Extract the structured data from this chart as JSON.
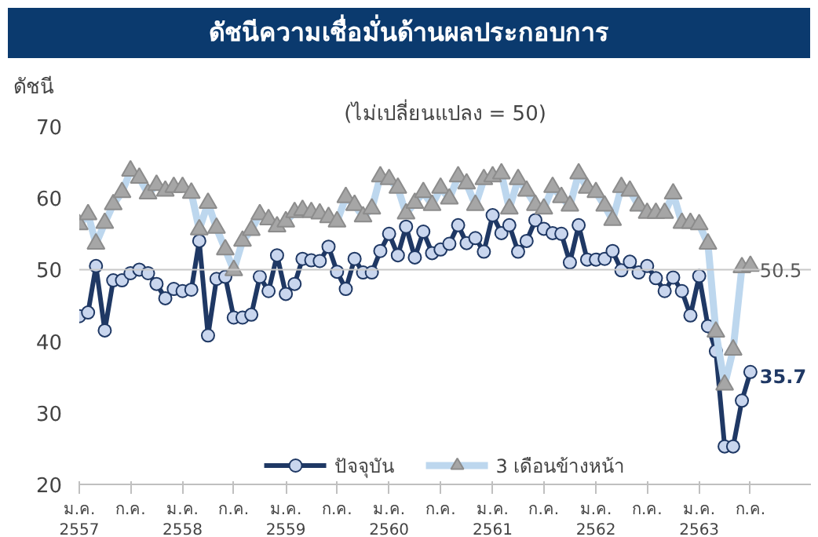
{
  "chart_data": {
    "type": "line",
    "title": "ดัชนีความเชื่อมั่นด้านผลประกอบการ",
    "subtitle": "(ไม่เปลี่ยนแปลง = 50)",
    "ylabel": "ดัชนี",
    "x": [
      "2557-01",
      "2557-02",
      "2557-03",
      "2557-04",
      "2557-05",
      "2557-06",
      "2557-07",
      "2557-08",
      "2557-09",
      "2557-10",
      "2557-11",
      "2557-12",
      "2558-01",
      "2558-02",
      "2558-03",
      "2558-04",
      "2558-05",
      "2558-06",
      "2558-07",
      "2558-08",
      "2558-09",
      "2558-10",
      "2558-11",
      "2558-12",
      "2559-01",
      "2559-02",
      "2559-03",
      "2559-04",
      "2559-05",
      "2559-06",
      "2559-07",
      "2559-08",
      "2559-09",
      "2559-10",
      "2559-11",
      "2559-12",
      "2560-01",
      "2560-02",
      "2560-03",
      "2560-04",
      "2560-05",
      "2560-06",
      "2560-07",
      "2560-08",
      "2560-09",
      "2560-10",
      "2560-11",
      "2560-12",
      "2561-01",
      "2561-02",
      "2561-03",
      "2561-04",
      "2561-05",
      "2561-06",
      "2561-07",
      "2561-08",
      "2561-09",
      "2561-10",
      "2561-11",
      "2561-12",
      "2562-01",
      "2562-02",
      "2562-03",
      "2562-04",
      "2562-05",
      "2562-06",
      "2562-07",
      "2562-08",
      "2562-09",
      "2562-10",
      "2562-11",
      "2562-12",
      "2563-01",
      "2563-02",
      "2563-03",
      "2563-04",
      "2563-05",
      "2563-06",
      "2563-07"
    ],
    "series": [
      {
        "name": "ปัจจุบัน",
        "color": "#1f3864",
        "marker": "circle",
        "values": [
          43.5,
          44,
          50.5,
          41.5,
          48.5,
          48.5,
          49.5,
          50,
          49.5,
          48,
          46,
          47.3,
          47,
          47.2,
          54,
          40.8,
          48.7,
          49,
          43.3,
          43.3,
          43.7,
          49,
          47,
          52,
          46.6,
          48,
          51.5,
          51.3,
          51.2,
          53.2,
          49.7,
          47.3,
          51.5,
          49.6,
          49.6,
          52.6,
          55,
          52,
          56,
          51.7,
          55.3,
          52.3,
          52.8,
          53.6,
          56.2,
          53.7,
          54.4,
          52.5,
          57.6,
          55.1,
          56.2,
          52.5,
          54,
          56.9,
          55.7,
          55.1,
          55,
          51,
          56.2,
          51.4,
          51.4,
          51.5,
          52.6,
          49.9,
          51.1,
          49.6,
          50.5,
          48.8,
          47,
          48.9,
          47,
          43.6,
          49.1,
          42.1,
          38.6,
          25.3,
          25.3,
          31.7,
          35.7
        ],
        "value_labels": [
          null,
          null,
          null,
          null,
          null,
          null,
          null,
          null,
          null,
          null,
          null,
          null,
          null,
          null,
          null,
          null,
          null,
          null,
          null,
          null,
          null,
          null,
          null,
          null,
          null,
          null,
          null,
          null,
          null,
          null,
          null,
          null,
          null,
          null,
          null,
          null,
          null,
          null,
          null,
          null,
          null,
          null,
          null,
          null,
          null,
          null,
          null,
          null,
          null,
          null,
          null,
          null,
          null,
          null,
          null,
          null,
          null,
          null,
          null,
          null,
          null,
          null,
          null,
          null,
          null,
          null,
          null,
          null,
          null,
          null,
          null,
          null,
          null,
          null,
          null,
          null,
          null,
          null,
          "35.7"
        ]
      },
      {
        "name": "3 เดือนข้างหน้า",
        "color": "#bdd7ee",
        "marker": "triangle",
        "values": [
          56.3,
          57.7,
          53.6,
          56.5,
          59.1,
          60.8,
          63.8,
          62.8,
          60.6,
          61.8,
          61,
          61.5,
          61.5,
          60.7,
          55.6,
          59.3,
          55.8,
          52.8,
          49.9,
          54,
          55.5,
          57.7,
          57,
          56,
          56.7,
          58,
          58.3,
          58,
          57.8,
          57.3,
          56.7,
          60.1,
          59,
          57.4,
          58.5,
          63,
          62.6,
          61.4,
          57.8,
          59.3,
          60.8,
          59,
          61.4,
          59.9,
          63,
          62,
          59,
          62.6,
          63,
          63.4,
          58.5,
          62.6,
          61,
          59,
          58.5,
          61.5,
          60.1,
          58.9,
          63.4,
          61.4,
          60.8,
          58.9,
          56.9,
          61.5,
          61,
          58.9,
          57.9,
          57.9,
          57.9,
          60.6,
          56.5,
          56.5,
          56.3,
          53.6,
          41.3,
          33.9,
          38.8,
          50.3,
          50.5
        ],
        "value_labels": [
          null,
          null,
          null,
          null,
          null,
          null,
          null,
          null,
          null,
          null,
          null,
          null,
          null,
          null,
          null,
          null,
          null,
          null,
          null,
          null,
          null,
          null,
          null,
          null,
          null,
          null,
          null,
          null,
          null,
          null,
          null,
          null,
          null,
          null,
          null,
          null,
          null,
          null,
          null,
          null,
          null,
          null,
          null,
          null,
          null,
          null,
          null,
          null,
          null,
          null,
          null,
          null,
          null,
          null,
          null,
          null,
          null,
          null,
          null,
          null,
          null,
          null,
          null,
          null,
          null,
          null,
          null,
          null,
          null,
          null,
          null,
          null,
          null,
          null,
          null,
          null,
          null,
          null,
          "50.5"
        ]
      }
    ],
    "xlim": [
      "2557-01",
      "2564-01-31"
    ],
    "xticks": [
      {
        "value": "2557-01",
        "label": "ม.ค.\n2557"
      },
      {
        "value": "2557-07",
        "label": "ก.ค."
      },
      {
        "value": "2558-01",
        "label": "ม.ค.\n2558"
      },
      {
        "value": "2558-07",
        "label": "ก.ค."
      },
      {
        "value": "2559-01",
        "label": "ม.ค.\n2559"
      },
      {
        "value": "2559-07",
        "label": "ก.ค."
      },
      {
        "value": "2560-01",
        "label": "ม.ค.\n2560"
      },
      {
        "value": "2560-07",
        "label": "ก.ค."
      },
      {
        "value": "2561-01",
        "label": "ม.ค.\n2561"
      },
      {
        "value": "2561-07",
        "label": "ก.ค."
      },
      {
        "value": "2562-01",
        "label": "ม.ค.\n2562"
      },
      {
        "value": "2562-07",
        "label": "ก.ค."
      },
      {
        "value": "2563-01",
        "label": "ม.ค.\n2563"
      },
      {
        "value": "2563-07",
        "label": "ก.ค."
      }
    ],
    "ylim": [
      20,
      70
    ],
    "yticks": [
      20,
      30,
      40,
      50,
      60,
      70
    ],
    "ref_lines": [
      {
        "axis": "y",
        "value": 50,
        "color": "#c8c8c8"
      }
    ],
    "grid": false,
    "legend": "bottom",
    "line_style": "solid"
  }
}
